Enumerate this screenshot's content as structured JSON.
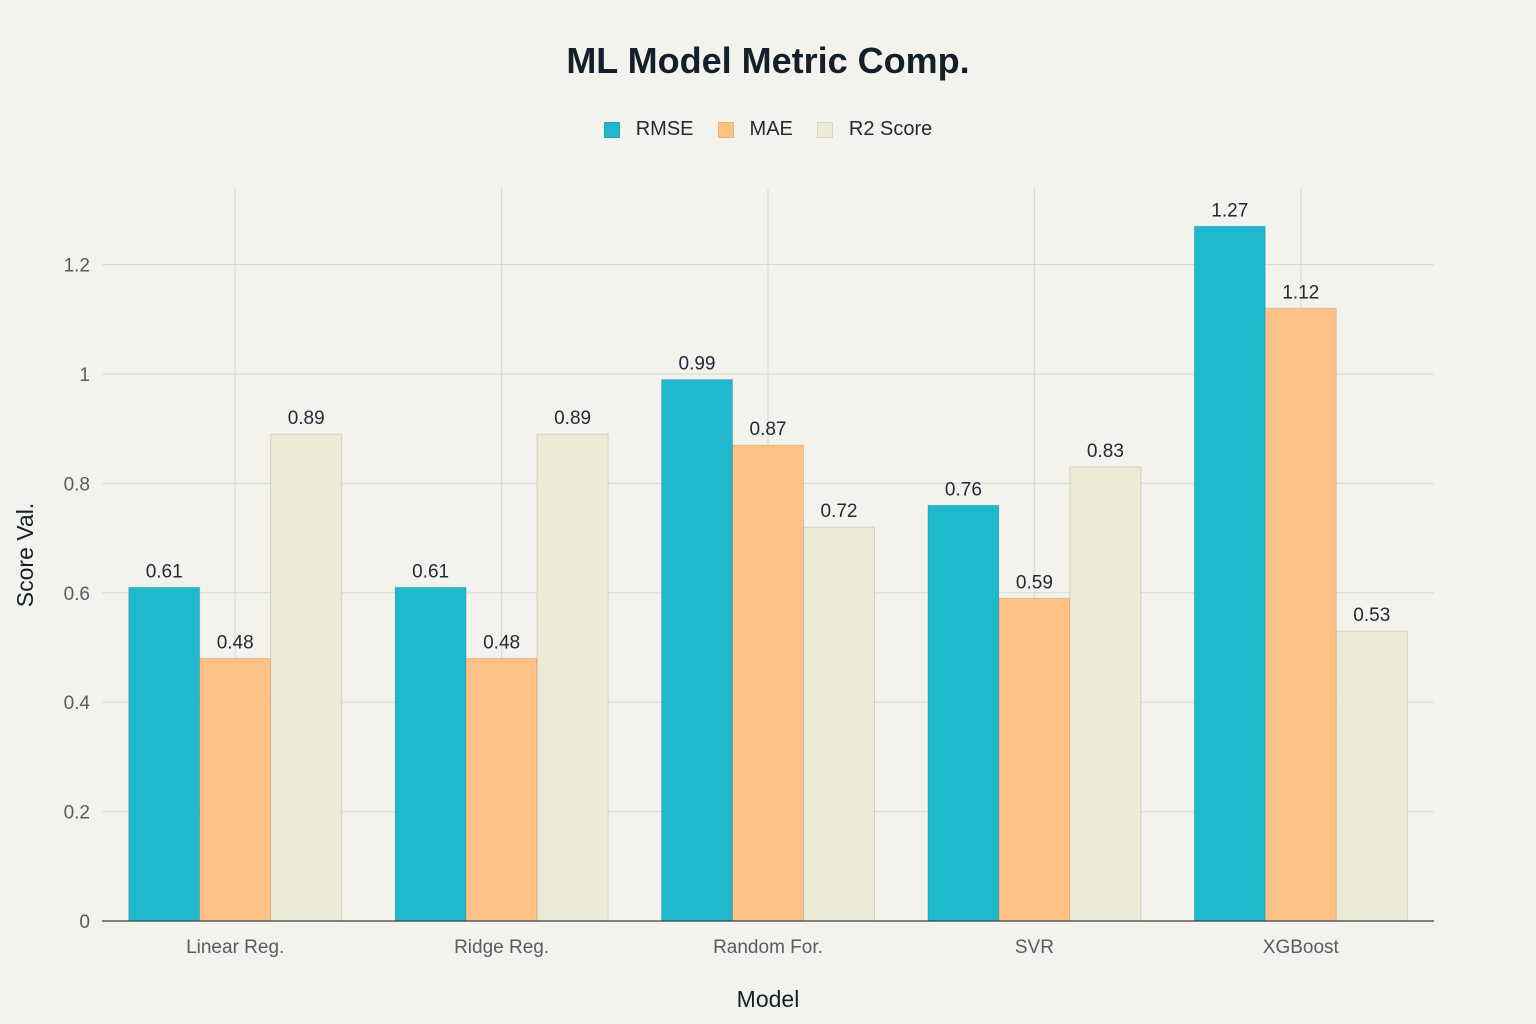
{
  "chart_data": {
    "type": "bar",
    "title": "ML Model Metric Comp.",
    "xlabel": "Model",
    "ylabel": "Score Val.",
    "categories": [
      "Linear Reg.",
      "Ridge Reg.",
      "Random For.",
      "SVR",
      "XGBoost"
    ],
    "series": [
      {
        "name": "RMSE",
        "color": "#1fb8cd",
        "values": [
          0.61,
          0.61,
          0.99,
          0.76,
          1.27
        ],
        "labels": [
          "0.61",
          "0.61",
          "0.99",
          "0.76",
          "1.27"
        ]
      },
      {
        "name": "MAE",
        "color": "#ffc185",
        "values": [
          0.48,
          0.48,
          0.87,
          0.59,
          1.12
        ],
        "labels": [
          "0.48",
          "0.48",
          "0.87",
          "0.59",
          "1.12"
        ]
      },
      {
        "name": "R2 Score",
        "color": "#ecebd5",
        "values": [
          0.89,
          0.89,
          0.72,
          0.83,
          0.53
        ],
        "labels": [
          "0.89",
          "0.89",
          "0.72",
          "0.83",
          "0.53"
        ]
      }
    ],
    "yticks": [
      0,
      0.2,
      0.4,
      0.6,
      0.8,
      1,
      1.2
    ],
    "ytick_labels": [
      "0",
      "0.2",
      "0.4",
      "0.6",
      "0.8",
      "1",
      "1.2"
    ],
    "ylim": [
      0,
      1.34
    ],
    "grid": true,
    "legend_position": "top-center"
  }
}
